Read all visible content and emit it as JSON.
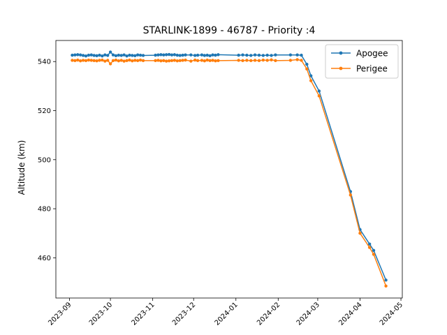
{
  "chart_data": {
    "type": "line",
    "title": "STARLINK-1899 - 46787 - Priority :4",
    "xlabel": "",
    "ylabel": "Altitude (km)",
    "xlim": [
      "2023-08-22",
      "2024-05-02"
    ],
    "ylim": [
      443.6,
      548.6
    ],
    "x_ticks": [
      "2023-09",
      "2023-10",
      "2023-11",
      "2023-12",
      "2024-01",
      "2024-02",
      "2024-03",
      "2024-04",
      "2024-05"
    ],
    "y_ticks": [
      460,
      480,
      500,
      520,
      540
    ],
    "grid": false,
    "legend": "top-right",
    "series": [
      {
        "name": "Apogee",
        "color": "#1f77b4",
        "points": [
          [
            "2023-09-03",
            542.6
          ],
          [
            "2023-09-05",
            542.7
          ],
          [
            "2023-09-07",
            542.8
          ],
          [
            "2023-09-09",
            542.7
          ],
          [
            "2023-09-11",
            542.5
          ],
          [
            "2023-09-13",
            542.3
          ],
          [
            "2023-09-15",
            542.6
          ],
          [
            "2023-09-17",
            542.7
          ],
          [
            "2023-09-19",
            542.5
          ],
          [
            "2023-09-21",
            542.4
          ],
          [
            "2023-09-23",
            542.6
          ],
          [
            "2023-09-25",
            542.3
          ],
          [
            "2023-09-27",
            542.7
          ],
          [
            "2023-09-29",
            542.5
          ],
          [
            "2023-10-01",
            543.9
          ],
          [
            "2023-10-03",
            542.7
          ],
          [
            "2023-10-05",
            542.4
          ],
          [
            "2023-10-07",
            542.6
          ],
          [
            "2023-10-09",
            542.5
          ],
          [
            "2023-10-11",
            542.7
          ],
          [
            "2023-10-13",
            542.3
          ],
          [
            "2023-10-15",
            542.6
          ],
          [
            "2023-10-17",
            542.5
          ],
          [
            "2023-10-19",
            542.4
          ],
          [
            "2023-10-21",
            542.7
          ],
          [
            "2023-10-23",
            542.6
          ],
          [
            "2023-10-25",
            542.5
          ],
          [
            "2023-11-03",
            542.6
          ],
          [
            "2023-11-05",
            542.7
          ],
          [
            "2023-11-07",
            542.8
          ],
          [
            "2023-11-09",
            542.7
          ],
          [
            "2023-11-11",
            542.8
          ],
          [
            "2023-11-13",
            542.9
          ],
          [
            "2023-11-15",
            542.7
          ],
          [
            "2023-11-17",
            542.8
          ],
          [
            "2023-11-19",
            542.6
          ],
          [
            "2023-11-21",
            542.5
          ],
          [
            "2023-11-23",
            542.6
          ],
          [
            "2023-11-25",
            542.7
          ],
          [
            "2023-11-29",
            542.7
          ],
          [
            "2023-12-02",
            542.5
          ],
          [
            "2023-12-04",
            542.6
          ],
          [
            "2023-12-07",
            542.7
          ],
          [
            "2023-12-09",
            542.5
          ],
          [
            "2023-12-11",
            542.6
          ],
          [
            "2023-12-13",
            542.4
          ],
          [
            "2023-12-15",
            542.7
          ],
          [
            "2023-12-17",
            542.6
          ],
          [
            "2023-12-19",
            542.8
          ],
          [
            "2024-01-03",
            542.6
          ],
          [
            "2024-01-06",
            542.7
          ],
          [
            "2024-01-09",
            542.6
          ],
          [
            "2024-01-12",
            542.5
          ],
          [
            "2024-01-15",
            542.7
          ],
          [
            "2024-01-18",
            542.6
          ],
          [
            "2024-01-21",
            542.5
          ],
          [
            "2024-01-24",
            542.6
          ],
          [
            "2024-01-27",
            542.5
          ],
          [
            "2024-01-30",
            542.7
          ],
          [
            "2024-02-10",
            542.7
          ],
          [
            "2024-02-15",
            542.7
          ],
          [
            "2024-02-18",
            542.6
          ],
          [
            "2024-02-22",
            538.9
          ],
          [
            "2024-02-25",
            534.2
          ],
          [
            "2024-03-02",
            528.0
          ],
          [
            "2024-03-25",
            487.0
          ],
          [
            "2024-04-01",
            471.5
          ],
          [
            "2024-04-08",
            465.6
          ],
          [
            "2024-04-11",
            463.0
          ],
          [
            "2024-04-20",
            450.9
          ]
        ]
      },
      {
        "name": "Perigee",
        "color": "#ff7f0e",
        "points": [
          [
            "2023-09-03",
            540.5
          ],
          [
            "2023-09-05",
            540.4
          ],
          [
            "2023-09-07",
            540.6
          ],
          [
            "2023-09-09",
            540.3
          ],
          [
            "2023-09-11",
            540.5
          ],
          [
            "2023-09-13",
            540.4
          ],
          [
            "2023-09-15",
            540.6
          ],
          [
            "2023-09-17",
            540.5
          ],
          [
            "2023-09-19",
            540.4
          ],
          [
            "2023-09-21",
            540.3
          ],
          [
            "2023-09-23",
            540.5
          ],
          [
            "2023-09-25",
            540.6
          ],
          [
            "2023-09-27",
            540.2
          ],
          [
            "2023-09-29",
            540.5
          ],
          [
            "2023-10-01",
            539.1
          ],
          [
            "2023-10-03",
            540.4
          ],
          [
            "2023-10-05",
            540.6
          ],
          [
            "2023-10-07",
            540.3
          ],
          [
            "2023-10-09",
            540.5
          ],
          [
            "2023-10-11",
            540.2
          ],
          [
            "2023-10-13",
            540.4
          ],
          [
            "2023-10-15",
            540.6
          ],
          [
            "2023-10-17",
            540.3
          ],
          [
            "2023-10-19",
            540.5
          ],
          [
            "2023-10-21",
            540.4
          ],
          [
            "2023-10-23",
            540.6
          ],
          [
            "2023-10-25",
            540.4
          ],
          [
            "2023-11-03",
            540.4
          ],
          [
            "2023-11-05",
            540.5
          ],
          [
            "2023-11-07",
            540.3
          ],
          [
            "2023-11-09",
            540.4
          ],
          [
            "2023-11-11",
            540.2
          ],
          [
            "2023-11-13",
            540.3
          ],
          [
            "2023-11-15",
            540.4
          ],
          [
            "2023-11-17",
            540.5
          ],
          [
            "2023-11-19",
            540.3
          ],
          [
            "2023-11-21",
            540.4
          ],
          [
            "2023-11-23",
            540.5
          ],
          [
            "2023-11-25",
            540.6
          ],
          [
            "2023-11-29",
            540.2
          ],
          [
            "2023-12-02",
            540.6
          ],
          [
            "2023-12-04",
            540.4
          ],
          [
            "2023-12-07",
            540.5
          ],
          [
            "2023-12-09",
            540.3
          ],
          [
            "2023-12-11",
            540.6
          ],
          [
            "2023-12-13",
            540.4
          ],
          [
            "2023-12-15",
            540.5
          ],
          [
            "2023-12-17",
            540.3
          ],
          [
            "2023-12-19",
            540.4
          ],
          [
            "2024-01-03",
            540.5
          ],
          [
            "2024-01-06",
            540.4
          ],
          [
            "2024-01-09",
            540.5
          ],
          [
            "2024-01-12",
            540.4
          ],
          [
            "2024-01-15",
            540.5
          ],
          [
            "2024-01-18",
            540.4
          ],
          [
            "2024-01-21",
            540.6
          ],
          [
            "2024-01-24",
            540.5
          ],
          [
            "2024-01-27",
            540.7
          ],
          [
            "2024-01-30",
            540.4
          ],
          [
            "2024-02-10",
            540.5
          ],
          [
            "2024-02-15",
            540.8
          ],
          [
            "2024-02-18",
            540.5
          ],
          [
            "2024-02-22",
            537.0
          ],
          [
            "2024-02-25",
            532.2
          ],
          [
            "2024-03-02",
            526.0
          ],
          [
            "2024-03-25",
            485.6
          ],
          [
            "2024-04-01",
            470.0
          ],
          [
            "2024-04-08",
            464.2
          ],
          [
            "2024-04-11",
            461.4
          ],
          [
            "2024-04-20",
            448.5
          ]
        ]
      }
    ]
  }
}
